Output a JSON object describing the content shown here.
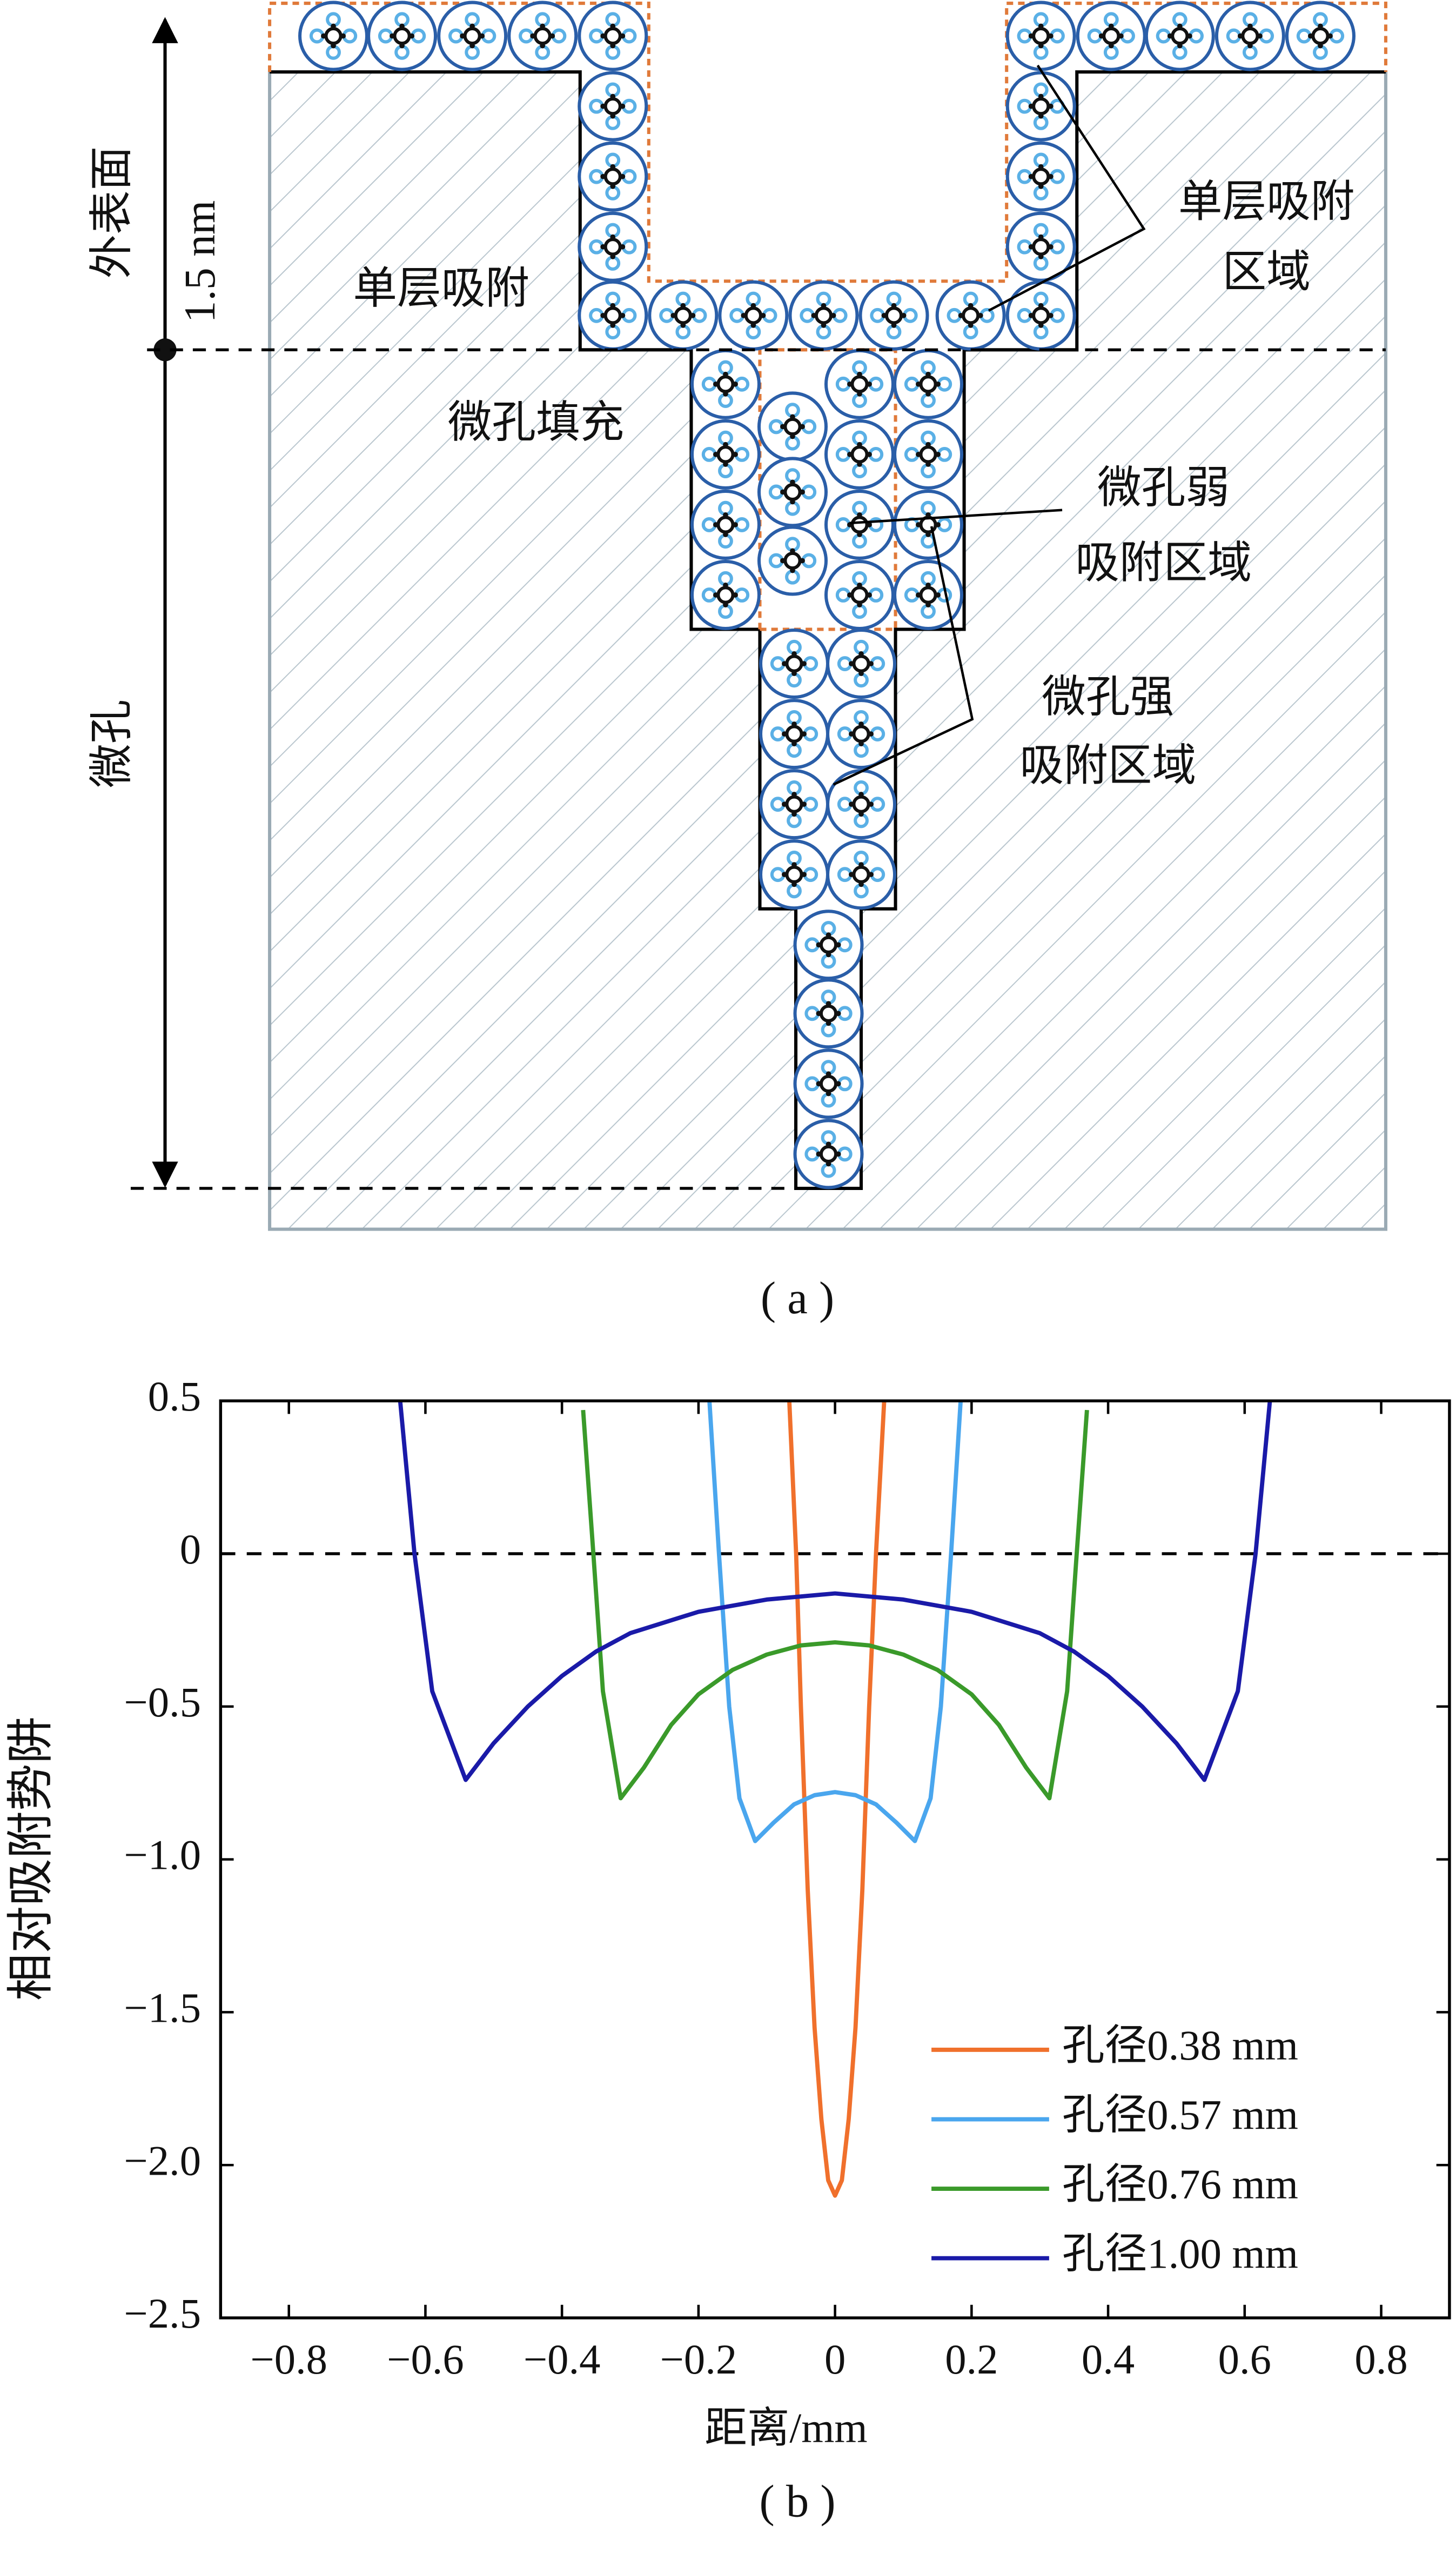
{
  "figure_a": {
    "outer_surface": "外表面",
    "thickness": "1.5 nm",
    "micropore": "微孔",
    "monolayer_left": "单层吸附",
    "monolayer_region": [
      "单层吸附",
      "区域"
    ],
    "micropore_filling": "微孔填充",
    "weak_region": [
      "微孔弱",
      "吸附区域"
    ],
    "strong_region": [
      "微孔强",
      "吸附区域"
    ],
    "caption": "( a )"
  },
  "chart_data": {
    "type": "line",
    "caption": "( b )",
    "x_label": "距离/mm",
    "y_label": "相对吸附势阱",
    "xlim": [
      -0.9,
      0.9
    ],
    "ylim": [
      -2.5,
      0.5
    ],
    "xticks": [
      {
        "value": -0.8,
        "label": "−0.8"
      },
      {
        "value": -0.6,
        "label": "−0.6"
      },
      {
        "value": -0.4,
        "label": "−0.4"
      },
      {
        "value": -0.2,
        "label": "−0.2"
      },
      0,
      0.2,
      0.4,
      0.6,
      0.8
    ],
    "yticks": [
      0.5,
      0,
      {
        "value": -0.5,
        "label": "−0.5"
      },
      {
        "value": -1.0,
        "label": "−1.0"
      },
      {
        "value": -1.5,
        "label": "−1.5"
      },
      {
        "value": -2.0,
        "label": "−2.0"
      },
      {
        "value": -2.5,
        "label": "−2.5"
      }
    ],
    "zero_line": true,
    "legend": "lower right",
    "series": [
      {
        "name": "孔径0.38 mm",
        "color": "#f0702c",
        "x": [
          -0.067,
          -0.057,
          -0.05,
          -0.04,
          -0.03,
          -0.02,
          -0.01,
          0,
          0.01,
          0.02,
          0.03,
          0.04,
          0.05,
          0.06,
          0.072
        ],
        "values": [
          0.5,
          0,
          -0.5,
          -1.1,
          -1.55,
          -1.85,
          -2.05,
          -2.1,
          -2.05,
          -1.85,
          -1.55,
          -1.1,
          -0.5,
          0,
          0.5
        ]
      },
      {
        "name": "孔径0.57 mm",
        "color": "#4aa6ee",
        "x": [
          -0.184,
          -0.17,
          -0.155,
          -0.14,
          -0.117,
          -0.09,
          -0.06,
          -0.03,
          0,
          0.03,
          0.06,
          0.09,
          0.117,
          0.14,
          0.155,
          0.17,
          0.184
        ],
        "values": [
          0.5,
          0,
          -0.5,
          -0.8,
          -0.94,
          -0.88,
          -0.82,
          -0.79,
          -0.78,
          -0.79,
          -0.82,
          -0.88,
          -0.94,
          -0.8,
          -0.5,
          0,
          0.5
        ]
      },
      {
        "name": "孔径0.76 mm",
        "color": "#3a9a2a",
        "x": [
          -0.369,
          -0.354,
          -0.34,
          -0.314,
          -0.28,
          -0.24,
          -0.2,
          -0.15,
          -0.1,
          -0.05,
          0,
          0.05,
          0.1,
          0.15,
          0.2,
          0.24,
          0.28,
          0.314,
          0.34,
          0.354,
          0.369
        ],
        "values": [
          0.47,
          0,
          -0.45,
          -0.8,
          -0.7,
          -0.56,
          -0.46,
          -0.38,
          -0.33,
          -0.3,
          -0.29,
          -0.3,
          -0.33,
          -0.38,
          -0.46,
          -0.56,
          -0.7,
          -0.8,
          -0.45,
          0,
          0.47
        ]
      },
      {
        "name": "孔径1.00 mm",
        "color": "#1a1aa8",
        "x": [
          -0.637,
          -0.616,
          -0.59,
          -0.541,
          -0.5,
          -0.45,
          -0.4,
          -0.35,
          -0.3,
          -0.2,
          -0.1,
          0,
          0.1,
          0.2,
          0.3,
          0.35,
          0.4,
          0.45,
          0.5,
          0.541,
          0.59,
          0.616,
          0.637
        ],
        "values": [
          0.5,
          0,
          -0.45,
          -0.74,
          -0.62,
          -0.5,
          -0.4,
          -0.32,
          -0.26,
          -0.19,
          -0.15,
          -0.13,
          -0.15,
          -0.19,
          -0.26,
          -0.32,
          -0.4,
          -0.5,
          -0.62,
          -0.74,
          -0.45,
          0,
          0.5
        ]
      }
    ]
  }
}
